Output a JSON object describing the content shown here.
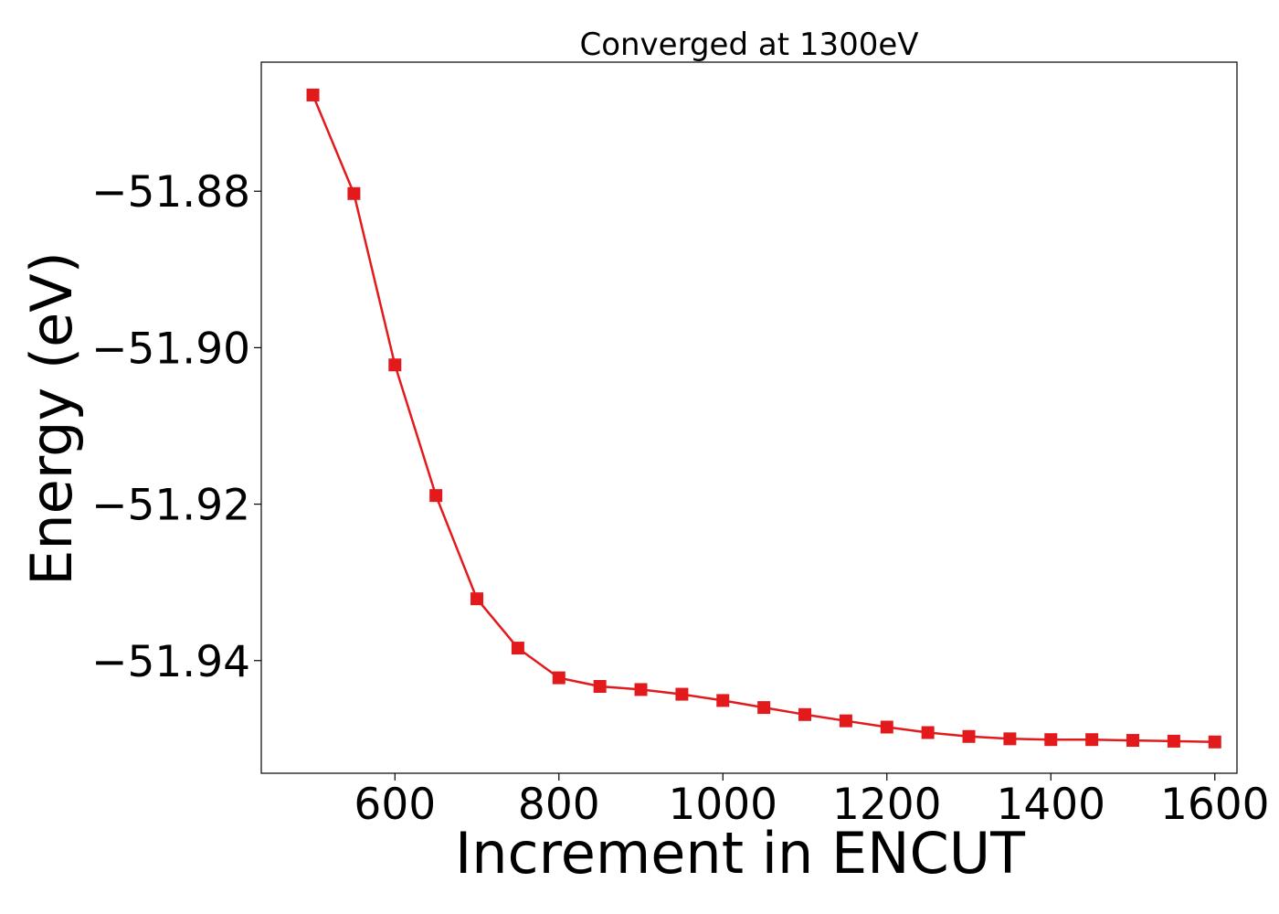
{
  "chart_data": {
    "type": "line",
    "title": "Converged at 1300eV",
    "xlabel": "Increment in ENCUT",
    "ylabel": "Energy (eV)",
    "xlim": [
      437,
      1627
    ],
    "ylim": [
      -51.9544,
      -51.8635
    ],
    "xticks": [
      600,
      800,
      1000,
      1200,
      1400,
      1600
    ],
    "xtick_labels": [
      "600",
      "800",
      "1000",
      "1200",
      "1400",
      "1600"
    ],
    "yticks": [
      -51.88,
      -51.9,
      -51.92,
      -51.94
    ],
    "ytick_labels": [
      "−51.88",
      "−51.90",
      "−51.92",
      "−51.94"
    ],
    "grid": false,
    "legend": "none",
    "series": [
      {
        "color": "#e31a1c",
        "marker": "square",
        "x": [
          500,
          550,
          600,
          650,
          700,
          750,
          800,
          850,
          900,
          950,
          1000,
          1050,
          1100,
          1150,
          1200,
          1250,
          1300,
          1350,
          1400,
          1450,
          1500,
          1550,
          1600
        ],
        "y": [
          -51.8677,
          -51.8803,
          -51.9022,
          -51.9189,
          -51.9321,
          -51.9384,
          -51.9422,
          -51.9433,
          -51.9437,
          -51.9443,
          -51.9451,
          -51.946,
          -51.9469,
          -51.9477,
          -51.9485,
          -51.9492,
          -51.9497,
          -51.95,
          -51.9501,
          -51.9501,
          -51.9502,
          -51.9503,
          -51.9504
        ]
      }
    ]
  }
}
